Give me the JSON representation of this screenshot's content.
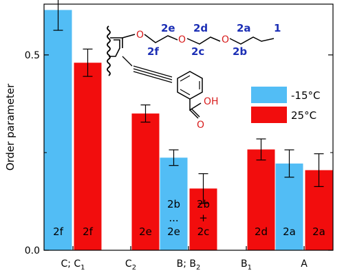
{
  "chart_data": {
    "type": "bar",
    "title": "",
    "xlabel": "",
    "ylabel": "Order parameter",
    "ylim": [
      0,
      0.63
    ],
    "yticks": [
      0.0,
      0.5
    ],
    "yticks_minor": [
      0.25
    ],
    "categories": [
      {
        "main": "C; C",
        "sub": "1"
      },
      {
        "main": "C",
        "sub": "2"
      },
      {
        "main": "B; B",
        "sub": "2"
      },
      {
        "main": "B",
        "sub": "1"
      },
      {
        "main": "A",
        "sub": ""
      }
    ],
    "series": [
      {
        "name": "-15°C",
        "color": "#52bdf5",
        "values": [
          0.615,
          null,
          0.237,
          null,
          0.222
        ],
        "errors": [
          0.052,
          null,
          0.02,
          null,
          0.035
        ],
        "labels": [
          [
            "2f"
          ],
          [],
          [
            "2b",
            "...",
            "2e"
          ],
          [],
          [
            "2a"
          ]
        ]
      },
      {
        "name": "25°C",
        "color": "#f20d0d",
        "values": [
          0.48,
          0.35,
          0.158,
          0.258,
          0.205
        ],
        "errors": [
          0.035,
          0.022,
          0.038,
          0.027,
          0.042
        ],
        "labels": [
          [
            "2f"
          ],
          [
            "2e"
          ],
          [
            "2b",
            "+",
            "2c"
          ],
          [
            "2d"
          ],
          [
            "2a"
          ]
        ]
      }
    ],
    "legend_position": "upper-right",
    "molecule": {
      "chain_labels": [
        "2e",
        "2d",
        "2a",
        "1",
        "2f",
        "2c",
        "2b"
      ],
      "oxygen_labels": [
        "O",
        "O",
        "O"
      ],
      "acid_labels": [
        "OH",
        "O"
      ]
    }
  }
}
